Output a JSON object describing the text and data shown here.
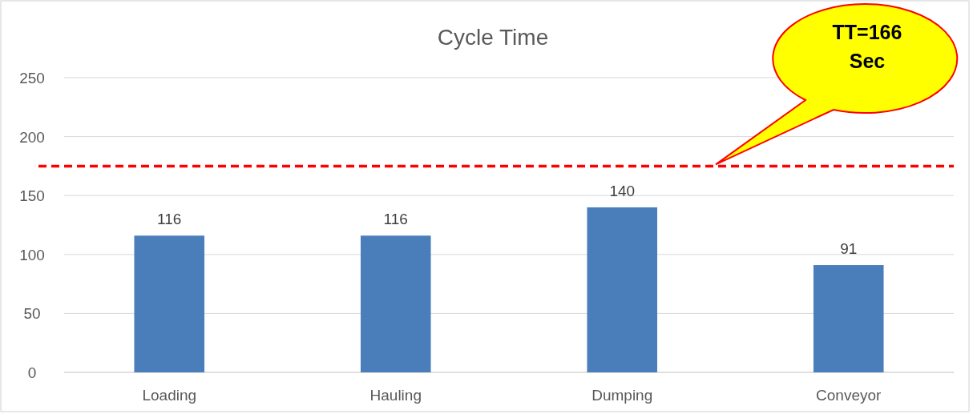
{
  "chart_data": {
    "type": "bar",
    "title": "Cycle Time",
    "categories": [
      "Loading",
      "Hauling",
      "Dumping",
      "Conveyor"
    ],
    "values": [
      116,
      116,
      140,
      91
    ],
    "color": "#4a7ebb",
    "ylim": [
      0,
      250
    ],
    "yticks": [
      0,
      50,
      100,
      150,
      200,
      250
    ],
    "grid": "y",
    "data_labels": true,
    "annotations": [
      "TT=166 Sec"
    ],
    "ref_lines": [
      {
        "axis": "y",
        "value": 175,
        "color": "#ff0000",
        "line_style": "dashed"
      }
    ]
  }
}
